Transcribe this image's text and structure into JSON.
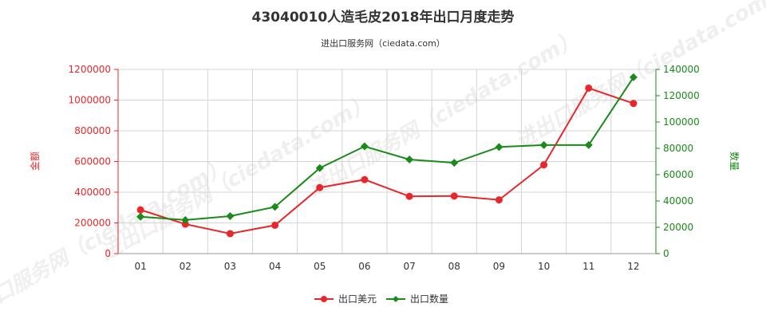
{
  "chart_data": {
    "type": "line",
    "title": "43040010人造毛皮2018年出口月度走势",
    "subtitle": "进出口服务网（ciedata.com）",
    "categories": [
      "01",
      "02",
      "03",
      "04",
      "05",
      "06",
      "07",
      "08",
      "09",
      "10",
      "11",
      "12"
    ],
    "series": [
      {
        "name": "出口美元",
        "axis": "left",
        "color": "#e8262b",
        "values": [
          285000,
          192000,
          130000,
          185000,
          430000,
          482000,
          373000,
          375000,
          350000,
          578000,
          1078000,
          978000
        ]
      },
      {
        "name": "出口数量",
        "axis": "right",
        "color": "#1a8a1a",
        "values": [
          28000,
          25500,
          28500,
          35500,
          65000,
          81500,
          71500,
          69000,
          81000,
          82500,
          82500,
          134000
        ]
      }
    ],
    "y_left": {
      "label": "金额",
      "range": [
        0,
        1200000
      ],
      "ticks": [
        "0",
        "200000",
        "400000",
        "600000",
        "800000",
        "1000000",
        "1200000"
      ]
    },
    "y_right": {
      "label": "数量",
      "range": [
        0,
        140000
      ],
      "ticks": [
        "0",
        "20000",
        "40000",
        "60000",
        "80000",
        "100000",
        "120000",
        "140000"
      ]
    },
    "grid": true,
    "legend_position": "bottom-center"
  }
}
